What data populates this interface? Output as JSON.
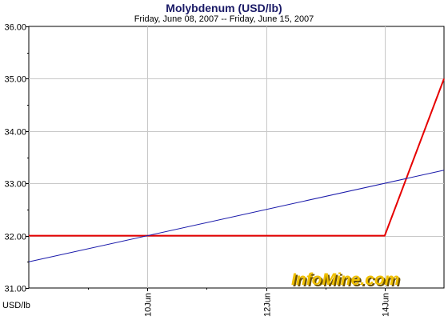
{
  "chart_data": {
    "type": "line",
    "title": "Molybdenum (USD/lb)",
    "subtitle": "Friday, June 08, 2007  --  Friday, June 15, 2007",
    "ylabel": "USD/lb",
    "xlim": [
      "2007-06-08",
      "2007-06-15"
    ],
    "ylim": [
      31.0,
      36.0
    ],
    "y_ticks": [
      "31.00",
      "32.00",
      "33.00",
      "34.00",
      "35.00",
      "36.00"
    ],
    "x_ticks": [
      {
        "date": "2007-06-10",
        "label": "10Jun"
      },
      {
        "date": "2007-06-12",
        "label": "12Jun"
      },
      {
        "date": "2007-06-14",
        "label": "14Jun"
      }
    ],
    "grid": true,
    "series": [
      {
        "color": "#e60000",
        "points": [
          {
            "x": "2007-06-08",
            "y": 32.0
          },
          {
            "x": "2007-06-14",
            "y": 32.0
          },
          {
            "x": "2007-06-15",
            "y": 35.0
          }
        ]
      },
      {
        "color": "#1a1aaa",
        "points": [
          {
            "x": "2007-06-08",
            "y": 31.5
          },
          {
            "x": "2007-06-15",
            "y": 33.25
          }
        ]
      }
    ]
  },
  "watermark": {
    "text": "InfoMine.com",
    "color": "#f0c000"
  }
}
